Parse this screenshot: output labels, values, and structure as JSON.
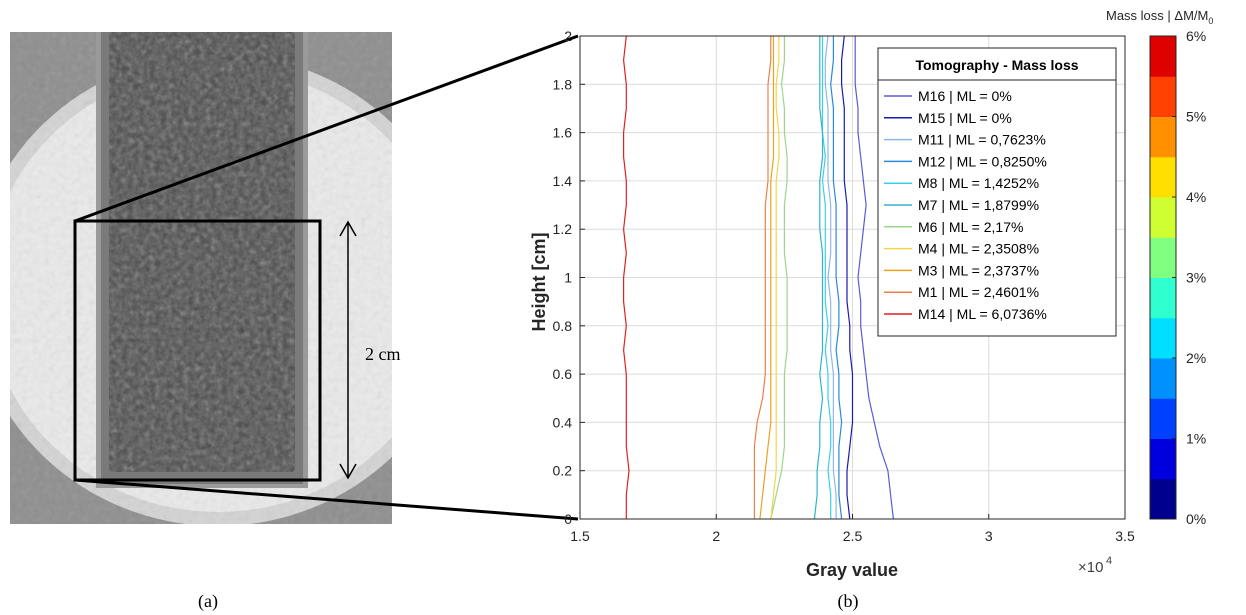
{
  "panel_a": {
    "caption": "(a)",
    "scale_label": "2 cm"
  },
  "panel_b": {
    "caption": "(b)"
  },
  "colorbar": {
    "title_prefix": "Mass loss | ",
    "title_symbol": "ΔM/M",
    "title_subscript": "0",
    "ticks": [
      "0%",
      "1%",
      "2%",
      "3%",
      "4%",
      "5%",
      "6%"
    ],
    "colors": [
      "#00008f",
      "#0000df",
      "#0040ff",
      "#0090ff",
      "#00dfff",
      "#30ffcf",
      "#80ff80",
      "#cfff30",
      "#ffdf00",
      "#ff9000",
      "#ff4000",
      "#df0000"
    ]
  },
  "chart_data": {
    "type": "line",
    "title": "",
    "xlabel": "Gray value",
    "ylabel": "Height [cm]",
    "x_exponent_label": "×10",
    "x_exponent": "4",
    "xlim": [
      15000,
      35000
    ],
    "ylim": [
      0,
      2
    ],
    "xticks": [
      1.5,
      2,
      2.5,
      3,
      3.5
    ],
    "xtick_labels": [
      "1.5",
      "2",
      "2.5",
      "3",
      "3.5"
    ],
    "yticks": [
      0,
      0.2,
      0.4,
      0.6,
      0.8,
      1,
      1.2,
      1.4,
      1.6,
      1.8,
      2
    ],
    "ytick_labels": [
      "0",
      "0.2",
      "0.4",
      "0.6",
      "0.8",
      "1",
      "1.2",
      "1.4",
      "1.6",
      "1.8",
      "2"
    ],
    "grid": true,
    "legend": {
      "title": "Tomography - Mass loss",
      "placement": "top-right"
    },
    "y": [
      0,
      0.1,
      0.2,
      0.3,
      0.4,
      0.5,
      0.6,
      0.7,
      0.8,
      0.9,
      1.0,
      1.1,
      1.2,
      1.3,
      1.4,
      1.5,
      1.6,
      1.7,
      1.8,
      1.9,
      2.0
    ],
    "series": [
      {
        "name": "M16 | ML = 0%",
        "color": "#5a5ad6",
        "x": [
          26500,
          26400,
          26300,
          26000,
          25800,
          25600,
          25500,
          25400,
          25300,
          25300,
          25200,
          25300,
          25400,
          25500,
          25400,
          25300,
          25200,
          25200,
          25100,
          25100,
          25100
        ]
      },
      {
        "name": "M15 | ML = 0%",
        "color": "#1a1ab0",
        "x": [
          24900,
          24800,
          24800,
          24900,
          25000,
          25000,
          25000,
          24900,
          24900,
          24800,
          24800,
          24800,
          24800,
          24800,
          24700,
          24700,
          24700,
          24700,
          24600,
          24600,
          24700
        ]
      },
      {
        "name": "M11 | ML = 0,7623%",
        "color": "#8fb8ea",
        "x": [
          24400,
          24400,
          24300,
          24300,
          24300,
          24300,
          24300,
          24200,
          24200,
          24200,
          24100,
          24200,
          24200,
          24200,
          24100,
          24100,
          24100,
          24100,
          24000,
          24000,
          24100
        ]
      },
      {
        "name": "M12 | ML = 0,8250%",
        "color": "#2a8ad6",
        "x": [
          24600,
          24500,
          24500,
          24500,
          24600,
          24500,
          24500,
          24400,
          24500,
          24500,
          24400,
          24400,
          24400,
          24400,
          24300,
          24300,
          24300,
          24300,
          24200,
          24300,
          24300
        ]
      },
      {
        "name": "M8 | ML = 1,4252%",
        "color": "#3ad0e6",
        "x": [
          24200,
          24200,
          24100,
          24200,
          24200,
          24100,
          24100,
          24000,
          24100,
          24000,
          24000,
          24000,
          24000,
          24000,
          23900,
          24000,
          23900,
          23900,
          23900,
          23900,
          23900
        ]
      },
      {
        "name": "M7 | ML = 1,8799%",
        "color": "#30b4c8",
        "x": [
          23600,
          23700,
          23700,
          23800,
          23800,
          23900,
          23800,
          23900,
          23900,
          23900,
          23900,
          23900,
          23800,
          23800,
          23800,
          23900,
          23900,
          23800,
          23800,
          23800,
          23800
        ]
      },
      {
        "name": "M6 | ML = 2,17%",
        "color": "#9cd68a",
        "x": [
          22000,
          22200,
          22400,
          22500,
          22500,
          22500,
          22500,
          22600,
          22600,
          22600,
          22600,
          22500,
          22500,
          22500,
          22600,
          22600,
          22500,
          22500,
          22400,
          22500,
          22500
        ]
      },
      {
        "name": "M4 | ML = 2,3508%",
        "color": "#f2d64a",
        "x": [
          22000,
          22100,
          22200,
          22200,
          22200,
          22200,
          22200,
          22200,
          22200,
          22200,
          22200,
          22200,
          22200,
          22200,
          22200,
          22300,
          22300,
          22200,
          22200,
          22300,
          22300
        ]
      },
      {
        "name": "M3 | ML = 2,3737%",
        "color": "#f0a020",
        "x": [
          21600,
          21700,
          21800,
          21900,
          22000,
          22000,
          22000,
          22000,
          22000,
          22000,
          22000,
          22000,
          22000,
          22000,
          22000,
          22100,
          22100,
          22100,
          22100,
          22100,
          22100
        ]
      },
      {
        "name": "M1 | ML = 2,4601%",
        "color": "#e8824a",
        "x": [
          21400,
          21400,
          21400,
          21400,
          21500,
          21700,
          21800,
          21800,
          21800,
          21800,
          21800,
          21800,
          21800,
          21800,
          21900,
          21900,
          21900,
          21900,
          21900,
          22000,
          22000
        ]
      },
      {
        "name": "M14 | ML = 6,0736%",
        "color": "#e02020",
        "x": [
          16700,
          16700,
          16800,
          16700,
          16700,
          16700,
          16700,
          16600,
          16700,
          16600,
          16600,
          16700,
          16600,
          16700,
          16700,
          16600,
          16600,
          16700,
          16700,
          16600,
          16700
        ]
      }
    ]
  }
}
